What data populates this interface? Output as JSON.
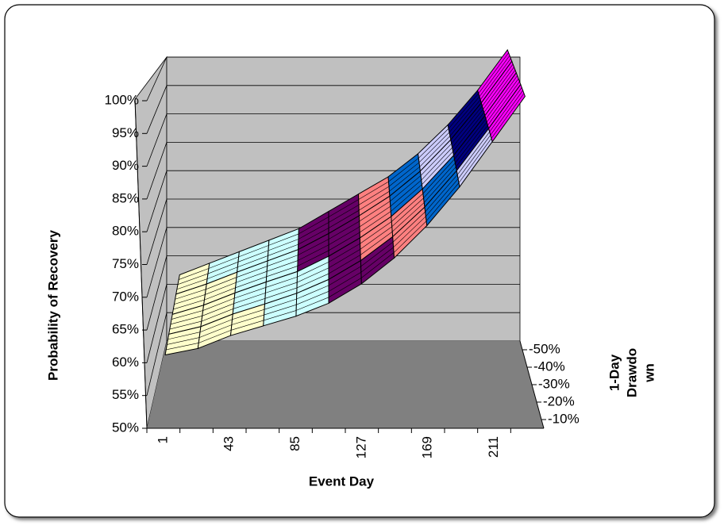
{
  "chart_data": {
    "type": "surface",
    "y_label": "Probability of Recovery",
    "x_label": "Event Day",
    "z_label": [
      "1-Day",
      "Drawdo",
      "wn"
    ],
    "categories": [
      1,
      null,
      43,
      null,
      85,
      null,
      127,
      null,
      169,
      null,
      211,
      null
    ],
    "series": [
      {
        "name": "-10%",
        "values": [
          60,
          61,
          63,
          64.5,
          66,
          68,
          71,
          75,
          80,
          86,
          93,
          100
        ]
      },
      {
        "name": "-20%",
        "values": [
          60.8,
          62,
          64,
          65.6,
          67.3,
          69.5,
          72.5,
          76.3,
          81,
          86.8,
          93.5,
          100.5
        ]
      },
      {
        "name": "-30%",
        "values": [
          61.5,
          63,
          65,
          66.8,
          68.5,
          71,
          74,
          77.5,
          82,
          87.5,
          94,
          101
        ]
      },
      {
        "name": "-40%",
        "values": [
          62.3,
          64,
          66,
          67.9,
          69.8,
          72.5,
          75.5,
          78.8,
          83,
          88.3,
          94.5,
          101.5
        ]
      },
      {
        "name": "-50%",
        "values": [
          63,
          65,
          67,
          69,
          71,
          74,
          77,
          80,
          84,
          89,
          95,
          102
        ]
      }
    ],
    "ylim": [
      50,
      100
    ],
    "yticks": [
      {
        "value": 50,
        "label": "50%"
      },
      {
        "value": 55,
        "label": "55%"
      },
      {
        "value": 60,
        "label": "60%"
      },
      {
        "value": 65,
        "label": "65%"
      },
      {
        "value": 70,
        "label": "70%"
      },
      {
        "value": 75,
        "label": "75%"
      },
      {
        "value": 80,
        "label": "80%"
      },
      {
        "value": 85,
        "label": "85%"
      },
      {
        "value": 90,
        "label": "90%"
      },
      {
        "value": 95,
        "label": "95%"
      },
      {
        "value": 100,
        "label": "100%"
      }
    ],
    "band_colors": [
      "#993366",
      "#993366",
      "#ffffcc",
      "#ccffff",
      "#660066",
      "#ff8080",
      "#0066cc",
      "#ccccff",
      "#000080",
      "#ff00ff"
    ],
    "grid": true
  }
}
